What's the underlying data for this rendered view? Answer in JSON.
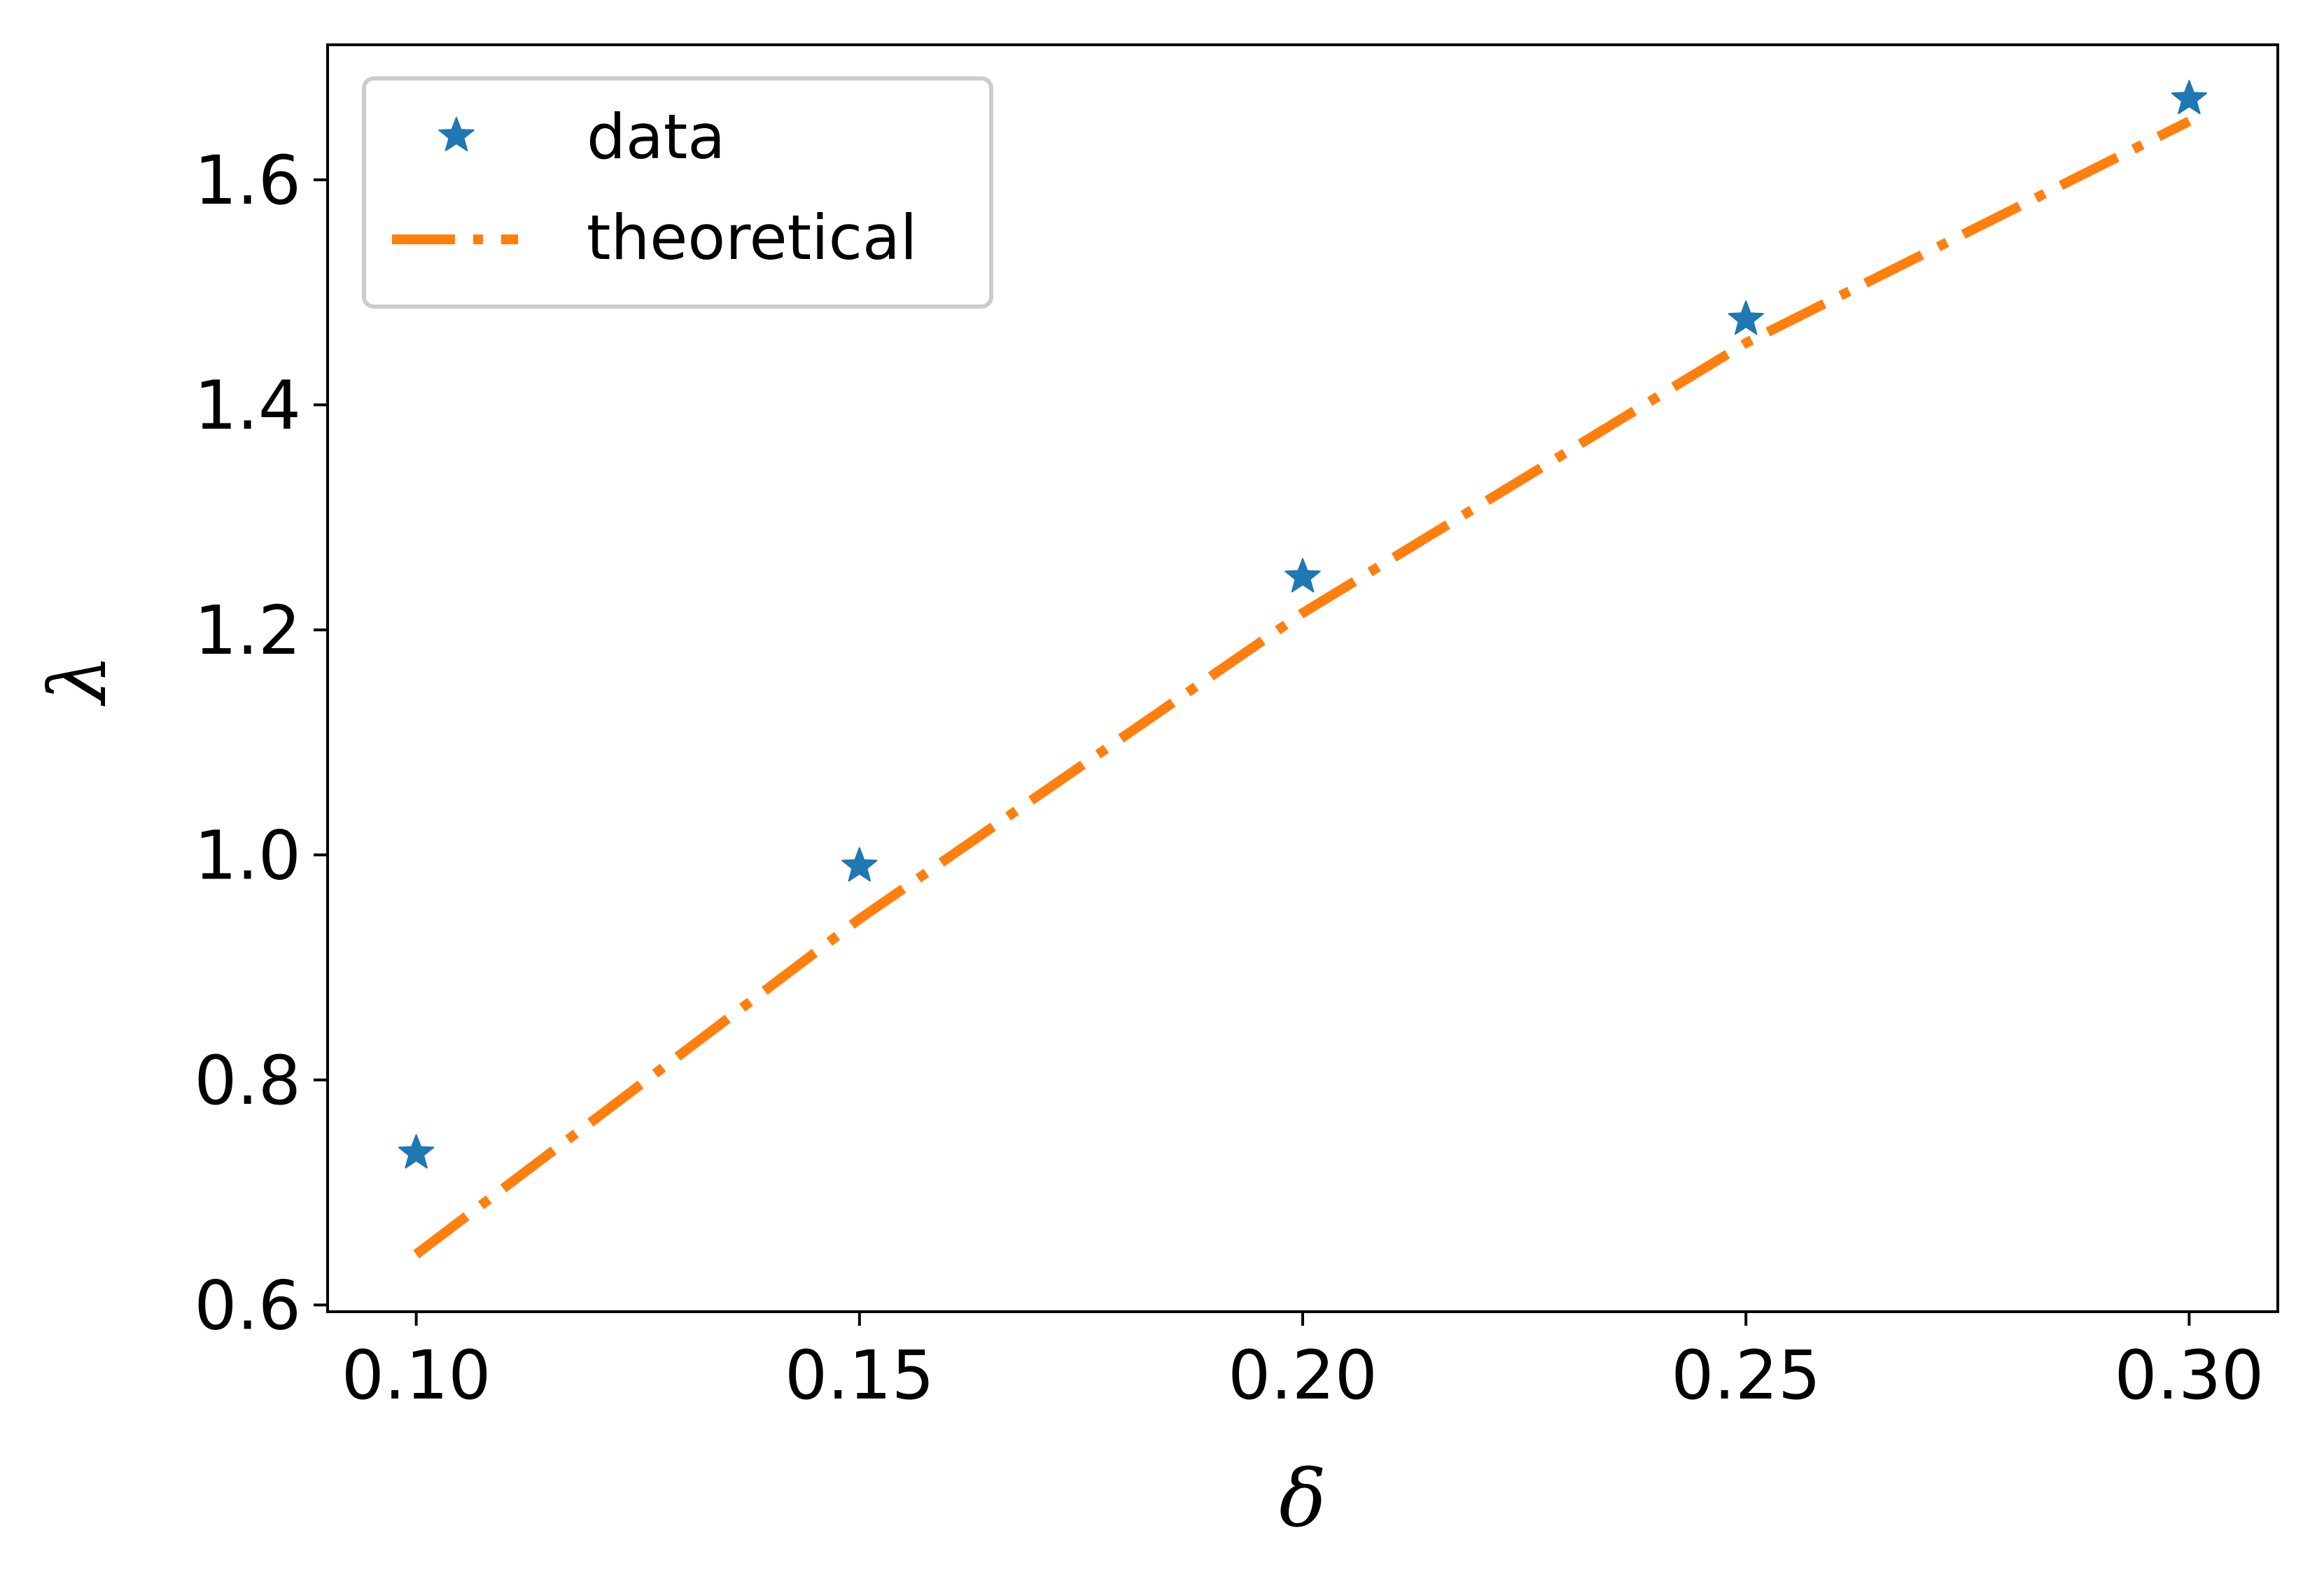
{
  "chart_data": {
    "type": "scatter",
    "title": "",
    "xlabel": "δ",
    "ylabel": "λ",
    "xlim": [
      0.09,
      0.31
    ],
    "ylim": [
      0.594,
      1.72
    ],
    "x_ticks": [
      0.1,
      0.15,
      0.2,
      0.25,
      0.3
    ],
    "x_tick_labels": [
      "0.10",
      "0.15",
      "0.20",
      "0.25",
      "0.30"
    ],
    "y_ticks": [
      0.6,
      0.8,
      1.0,
      1.2,
      1.4,
      1.6
    ],
    "y_tick_labels": [
      "0.6",
      "0.8",
      "1.0",
      "1.2",
      "1.4",
      "1.6"
    ],
    "grid": false,
    "legend_position": "top-left",
    "series": [
      {
        "name": "data",
        "kind": "scatter",
        "marker": "star",
        "color": "#1f77b4",
        "x": [
          0.1,
          0.15,
          0.2,
          0.25,
          0.3
        ],
        "y": [
          0.735,
          0.99,
          1.247,
          1.476,
          1.672
        ]
      },
      {
        "name": "theoretical",
        "kind": "line",
        "linestyle": "dash-dot",
        "color": "#ff7f0e",
        "x": [
          0.1,
          0.15,
          0.2,
          0.25,
          0.3
        ],
        "y": [
          0.645,
          0.943,
          1.215,
          1.455,
          1.652
        ]
      }
    ]
  }
}
